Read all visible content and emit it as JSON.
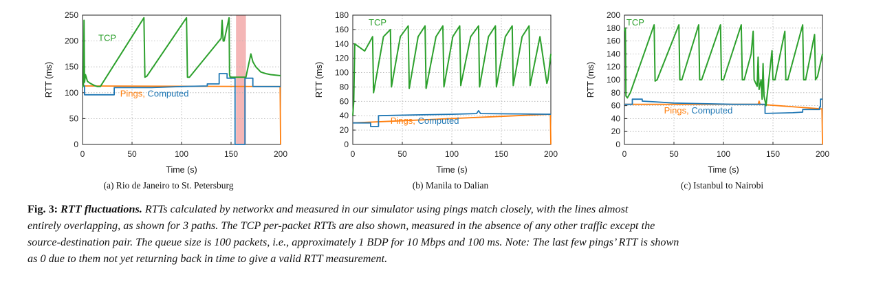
{
  "figure": {
    "caption": {
      "number": "Fig. 3:",
      "title": "RTT fluctuations.",
      "lines": [
        "RTTs calculated by networkx and measured in our simulator using pings match closely, with the lines almost",
        "entirely overlapping, as shown for 3 paths. The TCP per-packet RTTs are also shown, measured in the absence of any other traffic except the",
        "source-destination pair. The queue size is 100 packets, i.e., approximately 1 BDP for 10 Mbps and 100 ms. Note: The last few pings’ RTT is shown",
        "as 0 due to them not yet returning back in time to give a valid RTT measurement."
      ]
    }
  },
  "colors": {
    "tcp": "#2ca02c",
    "computed": "#1f77b4",
    "pings": "#ff7f0e",
    "highlight": "#f4b6b6",
    "grid": "#b0b0b0"
  },
  "chart_data": [
    {
      "type": "line",
      "subcaption": "(a) Rio de Janeiro to St. Petersburg",
      "xlabel": "Time (s)",
      "ylabel": "RTT (ms)",
      "xlim": [
        0,
        200
      ],
      "ylim": [
        0,
        250
      ],
      "xticks": [
        0,
        50,
        100,
        150,
        200
      ],
      "yticks": [
        0,
        50,
        100,
        150,
        200,
        250
      ],
      "grid": true,
      "highlight_x_range": [
        155,
        165
      ],
      "annotations": {
        "tcp": "TCP",
        "pings": "Pings,",
        "computed": "Computed"
      },
      "series": [
        {
          "name": "TCP",
          "x": [
            0,
            1,
            1.5,
            2,
            3,
            5,
            8,
            12,
            15,
            18,
            62,
            63,
            65,
            105,
            106,
            108,
            140,
            141,
            142,
            143,
            148,
            148.5,
            149,
            150,
            165,
            170,
            172,
            175,
            180,
            185,
            190,
            195,
            200
          ],
          "y": [
            110,
            115,
            240,
            120,
            135,
            122,
            118,
            114,
            112,
            112,
            245,
            130,
            132,
            245,
            130,
            130,
            205,
            240,
            200,
            200,
            245,
            135,
            130,
            130,
            130,
            175,
            160,
            150,
            140,
            137,
            135,
            134,
            133
          ]
        },
        {
          "name": "Computed",
          "x": [
            0,
            2,
            2,
            32,
            32,
            70,
            100,
            126,
            126,
            138,
            138,
            146,
            146,
            154,
            154,
            164,
            164,
            172,
            172,
            200
          ],
          "y": [
            113,
            113,
            96,
            96,
            110,
            110,
            112,
            113,
            117,
            117,
            137,
            137,
            128,
            128,
            0,
            0,
            128,
            128,
            112,
            112
          ]
        },
        {
          "name": "Pings",
          "x": [
            0,
            199,
            199.5,
            200
          ],
          "y": [
            113,
            112,
            112,
            0
          ]
        }
      ]
    },
    {
      "type": "line",
      "subcaption": "(b) Manila to Dalian",
      "xlabel": "Time (s)",
      "ylabel": "RTT (ms)",
      "xlim": [
        0,
        200
      ],
      "ylim": [
        0,
        180
      ],
      "xticks": [
        0,
        50,
        100,
        150,
        200
      ],
      "yticks": [
        0,
        20,
        40,
        60,
        80,
        100,
        120,
        140,
        160,
        180
      ],
      "grid": true,
      "annotations": {
        "tcp": "TCP",
        "pings": "Pings,",
        "computed": "Computed"
      },
      "series": [
        {
          "name": "TCP",
          "x": [
            0,
            1,
            2,
            12,
            20,
            21,
            22,
            31,
            38,
            39,
            48,
            56,
            57,
            66,
            73,
            74,
            84,
            91,
            92,
            101,
            108,
            109,
            119,
            127,
            128,
            137,
            144,
            145,
            154,
            161,
            162,
            171,
            178,
            179,
            189,
            196,
            197,
            200
          ],
          "y": [
            40,
            60,
            140,
            130,
            150,
            72,
            80,
            150,
            160,
            80,
            150,
            165,
            78,
            150,
            165,
            78,
            150,
            165,
            80,
            150,
            165,
            82,
            150,
            165,
            80,
            150,
            165,
            80,
            150,
            165,
            82,
            150,
            165,
            82,
            150,
            85,
            90,
            126
          ]
        },
        {
          "name": "Computed",
          "x": [
            0,
            18,
            18,
            26,
            26,
            60,
            100,
            125,
            127,
            129,
            200
          ],
          "y": [
            30,
            30,
            25,
            25,
            40,
            41,
            42,
            43,
            47,
            43,
            42
          ]
        },
        {
          "name": "Pings",
          "x": [
            0,
            199,
            199.5,
            200
          ],
          "y": [
            30,
            42,
            42,
            0
          ]
        }
      ]
    },
    {
      "type": "line",
      "subcaption": "(c) Istanbul to Nairobi",
      "xlabel": "Time (s)",
      "ylabel": "RTT (ms)",
      "xlim": [
        0,
        200
      ],
      "ylim": [
        0,
        200
      ],
      "xticks": [
        0,
        50,
        100,
        150,
        200
      ],
      "yticks": [
        0,
        20,
        40,
        60,
        80,
        100,
        120,
        140,
        160,
        180,
        200
      ],
      "grid": true,
      "annotations": {
        "tcp": "TCP",
        "pings": "Pings,",
        "computed": "Computed"
      },
      "series": [
        {
          "name": "TCP",
          "x": [
            0,
            1,
            1.5,
            3,
            6,
            30,
            31,
            33,
            55,
            56,
            58,
            75,
            76,
            78,
            97,
            98,
            100,
            118,
            119,
            121,
            128,
            130,
            131,
            134,
            135,
            136,
            138,
            139,
            140,
            141,
            143,
            149,
            150,
            152,
            162,
            163,
            165,
            180,
            181,
            183,
            192,
            193,
            195,
            200
          ],
          "y": [
            175,
            180,
            75,
            72,
            80,
            185,
            98,
            100,
            185,
            100,
            100,
            185,
            100,
            100,
            185,
            100,
            100,
            185,
            100,
            100,
            140,
            175,
            100,
            90,
            135,
            85,
            100,
            70,
            125,
            75,
            60,
            145,
            100,
            100,
            175,
            100,
            100,
            185,
            100,
            100,
            170,
            100,
            105,
            140
          ]
        },
        {
          "name": "Computed",
          "x": [
            0,
            8,
            8,
            18,
            18,
            30,
            50,
            80,
            110,
            135,
            142,
            142,
            170,
            180,
            180,
            197,
            197,
            198,
            198,
            200
          ],
          "y": [
            62,
            62,
            70,
            70,
            67,
            66,
            64,
            63,
            62,
            62,
            62,
            48,
            49,
            50,
            54,
            54,
            58,
            58,
            70,
            70
          ]
        },
        {
          "name": "Pings",
          "x": [
            0,
            135,
            136,
            137,
            199,
            199.5,
            200
          ],
          "y": [
            62,
            62,
            67,
            62,
            55,
            55,
            0
          ]
        }
      ]
    }
  ]
}
